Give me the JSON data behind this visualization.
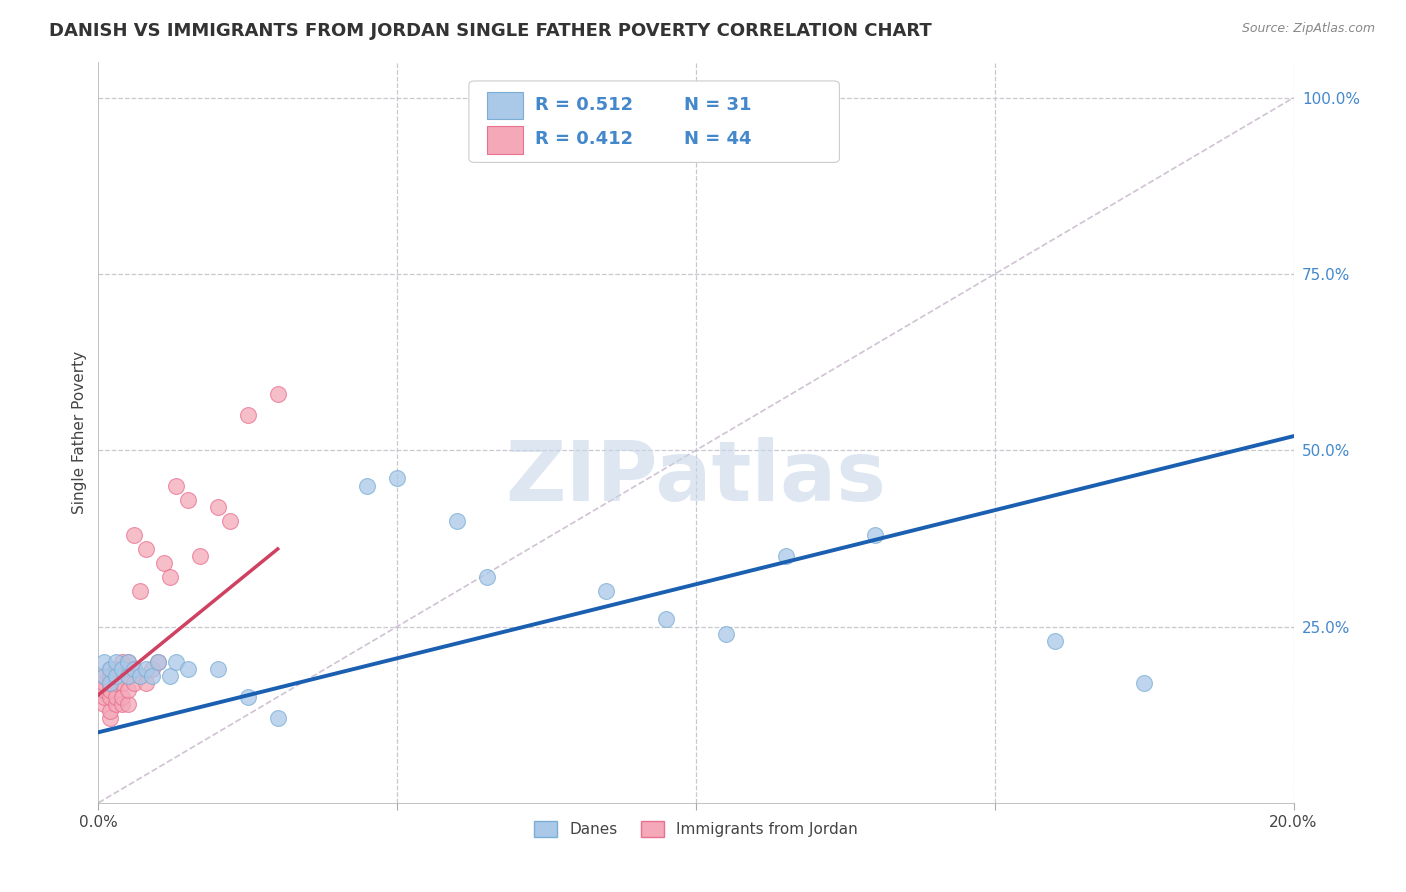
{
  "title": "DANISH VS IMMIGRANTS FROM JORDAN SINGLE FATHER POVERTY CORRELATION CHART",
  "source": "Source: ZipAtlas.com",
  "ylabel": "Single Father Poverty",
  "xlim": [
    0.0,
    0.2
  ],
  "ylim": [
    0.0,
    1.05
  ],
  "danes_color": "#aac8e8",
  "jordan_color": "#f4a8b8",
  "danes_edge": "#7aaed4",
  "jordan_edge": "#e87090",
  "trend_blue": "#1a5fb0",
  "trend_pink": "#d04060",
  "ref_line_color": "#c8b8cc",
  "legend_R_danes": "0.512",
  "legend_N_danes": "31",
  "legend_R_jordan": "0.412",
  "legend_N_jordan": "44",
  "watermark_text": "ZIPatlas",
  "watermark_color": "#c8d8e8",
  "background_color": "#ffffff",
  "grid_color": "#c8c8d0",
  "tick_color": "#4488cc",
  "title_color": "#333333",
  "danes_x": [
    0.001,
    0.001,
    0.002,
    0.002,
    0.003,
    0.003,
    0.004,
    0.005,
    0.005,
    0.006,
    0.007,
    0.008,
    0.009,
    0.01,
    0.012,
    0.013,
    0.015,
    0.02,
    0.025,
    0.03,
    0.045,
    0.05,
    0.06,
    0.065,
    0.085,
    0.095,
    0.105,
    0.115,
    0.13,
    0.16,
    0.175
  ],
  "danes_y": [
    0.18,
    0.2,
    0.17,
    0.19,
    0.18,
    0.2,
    0.19,
    0.18,
    0.2,
    0.19,
    0.18,
    0.19,
    0.18,
    0.2,
    0.18,
    0.2,
    0.19,
    0.19,
    0.15,
    0.12,
    0.45,
    0.46,
    0.4,
    0.32,
    0.3,
    0.26,
    0.24,
    0.35,
    0.38,
    0.23,
    0.17
  ],
  "jordan_x": [
    0.001,
    0.001,
    0.001,
    0.001,
    0.001,
    0.002,
    0.002,
    0.002,
    0.002,
    0.002,
    0.002,
    0.002,
    0.003,
    0.003,
    0.003,
    0.003,
    0.003,
    0.004,
    0.004,
    0.004,
    0.004,
    0.004,
    0.005,
    0.005,
    0.005,
    0.005,
    0.006,
    0.006,
    0.006,
    0.007,
    0.007,
    0.008,
    0.008,
    0.009,
    0.01,
    0.011,
    0.012,
    0.013,
    0.015,
    0.017,
    0.02,
    0.022,
    0.025,
    0.03
  ],
  "jordan_y": [
    0.14,
    0.15,
    0.16,
    0.17,
    0.18,
    0.12,
    0.13,
    0.15,
    0.16,
    0.17,
    0.18,
    0.19,
    0.14,
    0.15,
    0.17,
    0.18,
    0.19,
    0.14,
    0.15,
    0.17,
    0.19,
    0.2,
    0.14,
    0.16,
    0.18,
    0.2,
    0.17,
    0.19,
    0.38,
    0.18,
    0.3,
    0.17,
    0.36,
    0.19,
    0.2,
    0.34,
    0.32,
    0.45,
    0.43,
    0.35,
    0.42,
    0.4,
    0.55,
    0.58
  ]
}
